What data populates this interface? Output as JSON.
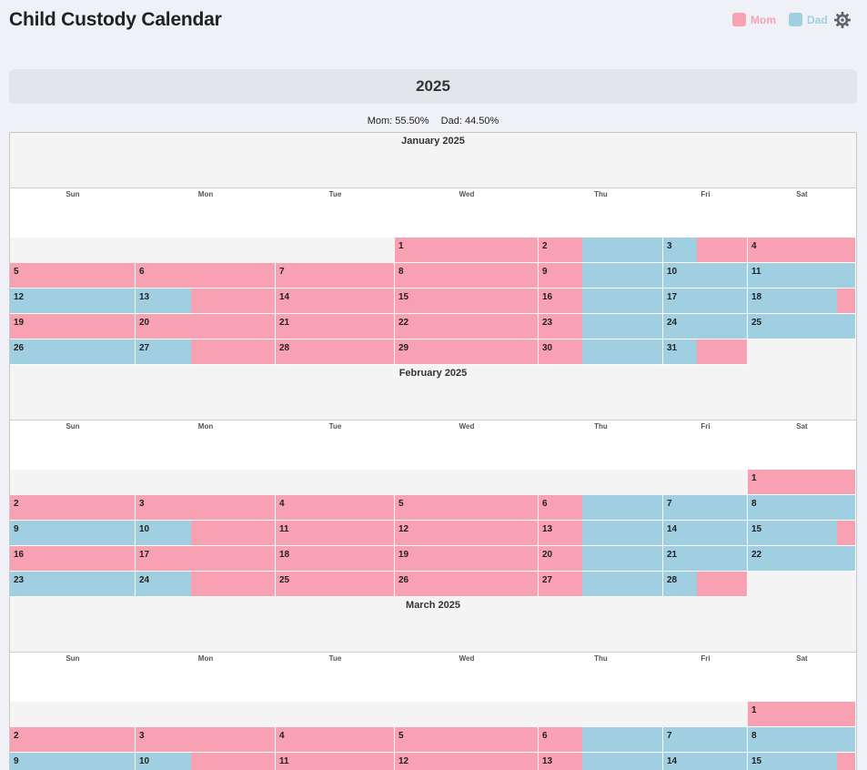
{
  "app": {
    "title": "Child Custody Calendar"
  },
  "legend": {
    "mom": {
      "label": "Mom",
      "color": "#f7a1b2"
    },
    "dad": {
      "label": "Dad",
      "color": "#9fcfe0"
    },
    "settings_icon": "gear-icon"
  },
  "year": "2025",
  "stats": {
    "mom": "Mom: 55.50%",
    "dad": "Dad: 44.50%"
  },
  "weekdays": [
    "Sun",
    "Mon",
    "Tue",
    "Wed",
    "Thu",
    "Fri",
    "Sat"
  ],
  "months": [
    {
      "title": "January 2025",
      "weeks": [
        [
          null,
          null,
          null,
          {
            "d": "1",
            "p": "M"
          },
          {
            "d": "2",
            "p": "MD"
          },
          {
            "d": "3",
            "p": "DM"
          },
          {
            "d": "4",
            "p": "M"
          }
        ],
        [
          {
            "d": "5",
            "p": "M"
          },
          {
            "d": "6",
            "p": "M"
          },
          {
            "d": "7",
            "p": "M"
          },
          {
            "d": "8",
            "p": "M"
          },
          {
            "d": "9",
            "p": "MD"
          },
          {
            "d": "10",
            "p": "D"
          },
          {
            "d": "11",
            "p": "D"
          }
        ],
        [
          {
            "d": "12",
            "p": "D"
          },
          {
            "d": "13",
            "p": "DM"
          },
          {
            "d": "14",
            "p": "M"
          },
          {
            "d": "15",
            "p": "M"
          },
          {
            "d": "16",
            "p": "MD"
          },
          {
            "d": "17",
            "p": "D"
          },
          {
            "d": "18",
            "p": "DM"
          }
        ],
        [
          {
            "d": "19",
            "p": "M"
          },
          {
            "d": "20",
            "p": "M"
          },
          {
            "d": "21",
            "p": "M"
          },
          {
            "d": "22",
            "p": "M"
          },
          {
            "d": "23",
            "p": "MD"
          },
          {
            "d": "24",
            "p": "D"
          },
          {
            "d": "25",
            "p": "D"
          }
        ],
        [
          {
            "d": "26",
            "p": "D"
          },
          {
            "d": "27",
            "p": "DM"
          },
          {
            "d": "28",
            "p": "M"
          },
          {
            "d": "29",
            "p": "M"
          },
          {
            "d": "30",
            "p": "MD"
          },
          {
            "d": "31",
            "p": "DM"
          },
          null
        ]
      ]
    },
    {
      "title": "February 2025",
      "weeks": [
        [
          null,
          null,
          null,
          null,
          null,
          null,
          {
            "d": "1",
            "p": "M"
          }
        ],
        [
          {
            "d": "2",
            "p": "M"
          },
          {
            "d": "3",
            "p": "M"
          },
          {
            "d": "4",
            "p": "M"
          },
          {
            "d": "5",
            "p": "M"
          },
          {
            "d": "6",
            "p": "MD"
          },
          {
            "d": "7",
            "p": "D"
          },
          {
            "d": "8",
            "p": "D"
          }
        ],
        [
          {
            "d": "9",
            "p": "D"
          },
          {
            "d": "10",
            "p": "DM"
          },
          {
            "d": "11",
            "p": "M"
          },
          {
            "d": "12",
            "p": "M"
          },
          {
            "d": "13",
            "p": "MD"
          },
          {
            "d": "14",
            "p": "D"
          },
          {
            "d": "15",
            "p": "DM"
          }
        ],
        [
          {
            "d": "16",
            "p": "M"
          },
          {
            "d": "17",
            "p": "M"
          },
          {
            "d": "18",
            "p": "M"
          },
          {
            "d": "19",
            "p": "M"
          },
          {
            "d": "20",
            "p": "MD"
          },
          {
            "d": "21",
            "p": "D"
          },
          {
            "d": "22",
            "p": "D"
          }
        ],
        [
          {
            "d": "23",
            "p": "D"
          },
          {
            "d": "24",
            "p": "DM"
          },
          {
            "d": "25",
            "p": "M"
          },
          {
            "d": "26",
            "p": "M"
          },
          {
            "d": "27",
            "p": "MD"
          },
          {
            "d": "28",
            "p": "DM"
          },
          null
        ]
      ]
    },
    {
      "title": "March 2025",
      "weeks": [
        [
          null,
          null,
          null,
          null,
          null,
          null,
          {
            "d": "1",
            "p": "M"
          }
        ],
        [
          {
            "d": "2",
            "p": "M"
          },
          {
            "d": "3",
            "p": "M"
          },
          {
            "d": "4",
            "p": "M"
          },
          {
            "d": "5",
            "p": "M"
          },
          {
            "d": "6",
            "p": "MD"
          },
          {
            "d": "7",
            "p": "D"
          },
          {
            "d": "8",
            "p": "D"
          }
        ],
        [
          {
            "d": "9",
            "p": "D"
          },
          {
            "d": "10",
            "p": "DM"
          },
          {
            "d": "11",
            "p": "M"
          },
          {
            "d": "12",
            "p": "M"
          },
          {
            "d": "13",
            "p": "MD"
          },
          {
            "d": "14",
            "p": "D"
          },
          {
            "d": "15",
            "p": "DM"
          }
        ]
      ]
    }
  ]
}
